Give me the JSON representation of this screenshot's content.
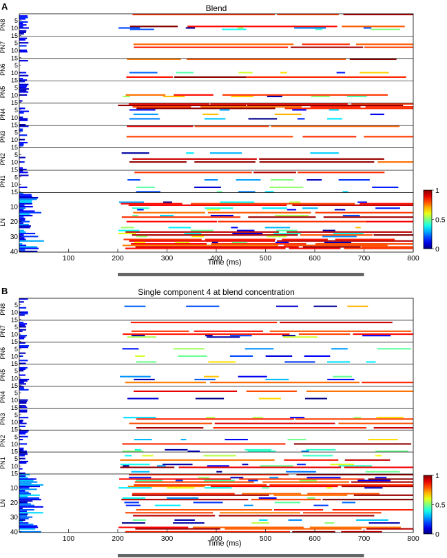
{
  "chart_data": [
    {
      "type": "heatmap",
      "panel_label": "A",
      "title": "Blend",
      "xlabel": "Time (ms)",
      "ylabel": "",
      "xlim": [
        0,
        800
      ],
      "xticks": [
        100,
        200,
        300,
        400,
        500,
        600,
        700,
        800
      ],
      "stimulus_window_ms": [
        200,
        700
      ],
      "groups": [
        {
          "name": "PN8",
          "rows": 15,
          "ticks": [
            5,
            10,
            15
          ]
        },
        {
          "name": "PN7",
          "rows": 15,
          "ticks": [
            5,
            10,
            15
          ]
        },
        {
          "name": "PN6",
          "rows": 15,
          "ticks": [
            5,
            10,
            15
          ]
        },
        {
          "name": "PN5",
          "rows": 15,
          "ticks": [
            5,
            10,
            15
          ]
        },
        {
          "name": "PN4",
          "rows": 15,
          "ticks": [
            5,
            10,
            15
          ]
        },
        {
          "name": "PN3",
          "rows": 15,
          "ticks": [
            5,
            10,
            15
          ]
        },
        {
          "name": "PN2",
          "rows": 15,
          "ticks": [
            5,
            10,
            15
          ]
        },
        {
          "name": "PN1",
          "rows": 15,
          "ticks": [
            5,
            10,
            15
          ]
        },
        {
          "name": "LN",
          "rows": 40,
          "ticks": [
            10,
            20,
            30,
            40
          ]
        }
      ],
      "colorbar": {
        "min": 0,
        "max": 1,
        "ticks": [
          0,
          0.5,
          1
        ],
        "colormap": "jet"
      },
      "colors": {
        "low": "#1f2f8f",
        "mid": "#8ee6c8",
        "high": "#8a0f12"
      }
    },
    {
      "type": "heatmap",
      "panel_label": "B",
      "title": "Single component 4 at blend concentration",
      "xlabel": "Time (ms)",
      "ylabel": "",
      "xlim": [
        0,
        800
      ],
      "xticks": [
        100,
        200,
        300,
        400,
        500,
        600,
        700,
        800
      ],
      "stimulus_window_ms": [
        200,
        700
      ],
      "groups": [
        {
          "name": "PN8",
          "rows": 15,
          "ticks": [
            5,
            10,
            15
          ]
        },
        {
          "name": "PN7",
          "rows": 15,
          "ticks": [
            5,
            10,
            15
          ]
        },
        {
          "name": "PN6",
          "rows": 15,
          "ticks": [
            5,
            10,
            15
          ]
        },
        {
          "name": "PN5",
          "rows": 15,
          "ticks": [
            5,
            10,
            15
          ]
        },
        {
          "name": "PN4",
          "rows": 15,
          "ticks": [
            5,
            10,
            15
          ]
        },
        {
          "name": "PN3",
          "rows": 15,
          "ticks": [
            5,
            10,
            15
          ]
        },
        {
          "name": "PN2",
          "rows": 15,
          "ticks": [
            5,
            10,
            15
          ]
        },
        {
          "name": "PN1",
          "rows": 15,
          "ticks": [
            5,
            10,
            15
          ]
        },
        {
          "name": "LN",
          "rows": 40,
          "ticks": [
            10,
            20,
            30,
            40
          ]
        }
      ],
      "colorbar": {
        "min": 0,
        "max": 1,
        "ticks": [
          0,
          0.5,
          1
        ],
        "colormap": "jet"
      },
      "colors": {
        "low": "#1f2f8f",
        "mid": "#8ee6c8",
        "high": "#8a0f12"
      }
    }
  ]
}
